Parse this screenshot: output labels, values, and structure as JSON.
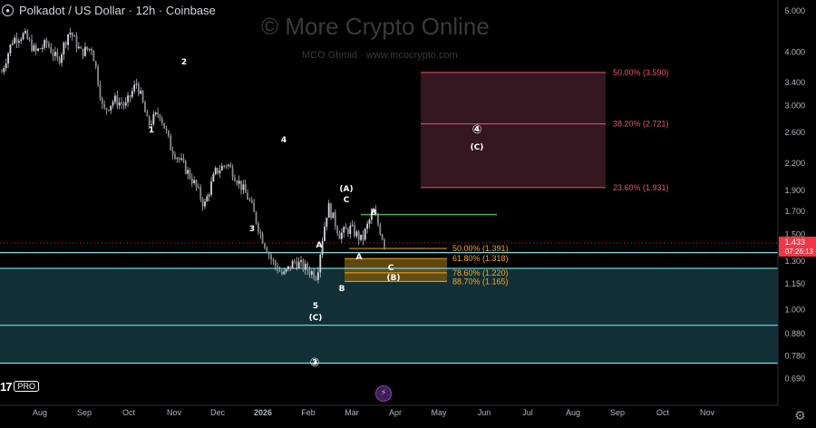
{
  "header": {
    "title": "Polkadot / US Dollar · 12h · Coinbase",
    "watermark": "© More Crypto Online",
    "watermark_sub": "MCO Ghmid  ·  www.mcocrypto.com"
  },
  "logo": {
    "brand": "17",
    "badge": "PRO"
  },
  "colors": {
    "background": "#000000",
    "candle_up": "#d1d4dc",
    "candle_down": "#d1d4dc",
    "cyan_line": "#7fe0e8",
    "zone_cyan": "#1f5661",
    "fib_red": "#e8566c",
    "fib_red_zone": "#3a1a24",
    "fib_orange": "#f6a623",
    "fib_orange_zone": "#6e5410",
    "green_line": "#4caf50",
    "price_tag": "#f23645"
  },
  "chart_data": {
    "type": "candlestick",
    "title": "Polkadot / US Dollar · 12h · Coinbase",
    "y_scale": "log",
    "ylim": [
      0.64,
      5.2
    ],
    "y_ticks": [
      "5.000",
      "4.000",
      "3.400",
      "3.000",
      "2.600",
      "2.200",
      "1.900",
      "1.700",
      "1.500",
      "1.300",
      "1.150",
      "1.000",
      "0.880",
      "0.780",
      "0.690"
    ],
    "x_labels": [
      "Aug",
      "Sep",
      "Oct",
      "Nov",
      "Dec",
      "2026",
      "Feb",
      "Mar",
      "Apr",
      "May",
      "Jun",
      "Jul",
      "Aug",
      "Sep",
      "Oct",
      "Nov"
    ],
    "last_price": "1.433",
    "countdown": "07:26:13",
    "price_path": [
      [
        0,
        3.6
      ],
      [
        1,
        4.3
      ],
      [
        2,
        4.4
      ],
      [
        3,
        4.0
      ],
      [
        4,
        4.2
      ],
      [
        5,
        3.8
      ],
      [
        6,
        4.5
      ],
      [
        7,
        4.0
      ],
      [
        8,
        4.1
      ],
      [
        9,
        2.9
      ],
      [
        10,
        3.1
      ],
      [
        11,
        3.0
      ],
      [
        12,
        3.4
      ],
      [
        13,
        2.7
      ],
      [
        14,
        2.9
      ],
      [
        15,
        2.4
      ],
      [
        16,
        2.2
      ],
      [
        17,
        2.0
      ],
      [
        18,
        1.75
      ],
      [
        19,
        2.1
      ],
      [
        20,
        2.2
      ],
      [
        21,
        2.0
      ],
      [
        22,
        1.8
      ],
      [
        23,
        1.5
      ],
      [
        24,
        1.3
      ],
      [
        25,
        1.2
      ],
      [
        26,
        1.3
      ],
      [
        27,
        1.25
      ],
      [
        28,
        1.2
      ],
      [
        29,
        1.75
      ],
      [
        30,
        1.5
      ],
      [
        31,
        1.55
      ],
      [
        32,
        1.45
      ],
      [
        33,
        1.7
      ],
      [
        34,
        1.43
      ]
    ],
    "fib_levels_red": [
      {
        "label": "50.00% (3.590)",
        "value": 3.59
      },
      {
        "label": "38.20% (2.721)",
        "value": 2.721
      },
      {
        "label": "23.60% (1.931)",
        "value": 1.931
      }
    ],
    "fib_levels_orange": [
      {
        "label": "50.00% (1.391)",
        "value": 1.391
      },
      {
        "label": "61.80% (1.318)",
        "value": 1.318
      },
      {
        "label": "78.60% (1.220)",
        "value": 1.22
      },
      {
        "label": "88.70% (1.165)",
        "value": 1.165
      }
    ],
    "horizontal_lines": [
      {
        "name": "cyan-upper",
        "value": 1.36
      },
      {
        "name": "cyan-mid",
        "value": 1.25
      },
      {
        "name": "cyan-lower",
        "value": 0.92
      },
      {
        "name": "cyan-bottom",
        "value": 0.75
      },
      {
        "name": "green-resistance",
        "value": 1.67
      }
    ],
    "wave_labels": [
      {
        "text": "1"
      },
      {
        "text": "2"
      },
      {
        "text": "3"
      },
      {
        "text": "4"
      },
      {
        "text": "5"
      },
      {
        "text": "(C)"
      },
      {
        "text": "A"
      },
      {
        "text": "(A)"
      },
      {
        "text": "C"
      },
      {
        "text": "B"
      },
      {
        "text": "B"
      },
      {
        "text": "A"
      },
      {
        "text": "C"
      },
      {
        "text": "(B)"
      },
      {
        "text": "④"
      },
      {
        "text": "(C)"
      },
      {
        "text": "③"
      }
    ]
  }
}
